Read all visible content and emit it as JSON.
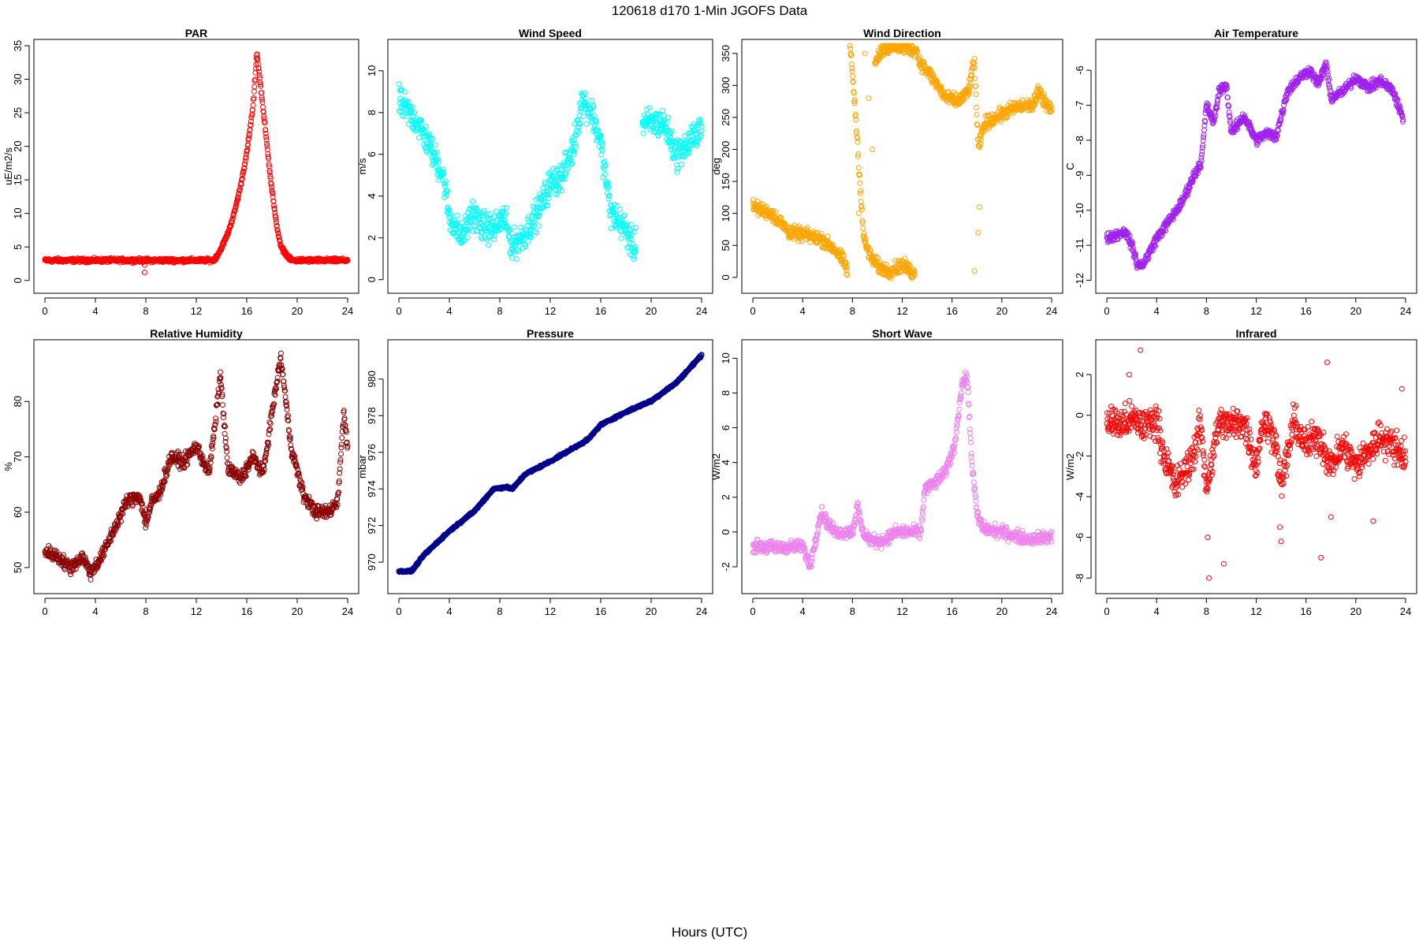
{
  "figure": {
    "title": "120618   d170   1-Min  JGOFS Data",
    "xlabel": "Hours (UTC)"
  },
  "chart_data": [
    {
      "type": "scatter",
      "title": "PAR",
      "ylabel": "uE/m2/s",
      "color": "#ff0000",
      "xlim": [
        0,
        24
      ],
      "ylim": [
        -0.5,
        35
      ],
      "xticks": [
        0,
        4,
        8,
        12,
        16,
        20,
        24
      ],
      "yticks": [
        0,
        5,
        10,
        15,
        20,
        25,
        30,
        35
      ],
      "series": [
        {
          "x": [
            0,
            13.4,
            13.9,
            14.5,
            15.0,
            15.5,
            16.0,
            16.5,
            16.8,
            17.1,
            17.5,
            17.9,
            18.3,
            18.7,
            19.1,
            19.5,
            24
          ],
          "y": [
            3,
            3,
            4.5,
            7,
            10,
            14,
            19,
            26,
            34,
            29,
            22,
            15,
            9,
            5,
            4,
            3,
            3
          ]
        }
      ],
      "outliers": [
        {
          "x": 7.9,
          "y": 2.3
        },
        {
          "x": 7.9,
          "y": 1.2
        }
      ],
      "noise": 0.25
    },
    {
      "type": "scatter",
      "title": "Wind Speed",
      "ylabel": "m/s",
      "color": "#00ffff",
      "xlim": [
        0,
        24
      ],
      "ylim": [
        -0.2,
        11.2
      ],
      "xticks": [
        0,
        4,
        8,
        12,
        16,
        20,
        24
      ],
      "yticks": [
        0,
        2,
        4,
        6,
        8,
        10
      ],
      "series": [
        {
          "x": [
            0,
            0.5,
            1.5,
            2.5,
            3.5,
            4.0,
            5.0,
            5.8,
            6.5,
            7.5,
            8.3,
            9.0,
            10.0,
            11.0,
            12.0,
            13.0,
            13.8,
            14.5,
            15.3,
            16.0,
            16.8,
            17.8,
            18.7,
            19.3,
            20.0,
            21.0,
            22.0,
            23.0,
            24.0
          ],
          "y": [
            8.5,
            8.2,
            7.5,
            6.3,
            5.0,
            3.0,
            2.0,
            3.2,
            2.6,
            2.4,
            3.0,
            1.6,
            2.2,
            3.2,
            4.6,
            5.0,
            6.3,
            8.6,
            8.0,
            6.5,
            3.2,
            2.6,
            1.4,
            7.5,
            7.5,
            7.5,
            6.0,
            6.5,
            7.5
          ]
        }
      ],
      "gaps": [
        [
          18.8,
          19.3
        ]
      ],
      "noise": 0.6
    },
    {
      "type": "scatter",
      "title": "Wind Direction",
      "ylabel": "deg",
      "color": "#ffa500",
      "xlim": [
        0,
        24
      ],
      "ylim": [
        -10,
        362
      ],
      "xticks": [
        0,
        4,
        8,
        12,
        16,
        20,
        24
      ],
      "yticks": [
        0,
        50,
        100,
        150,
        200,
        250,
        300,
        350
      ],
      "series": [
        {
          "x": [
            0,
            1.5,
            3.0,
            4.5,
            5.5,
            6.5,
            7.3,
            7.6
          ],
          "y": [
            110,
            100,
            70,
            65,
            60,
            45,
            25,
            10
          ]
        },
        {
          "x": [
            7.8,
            8.0,
            8.3,
            8.6,
            8.9,
            9.5,
            10.2,
            11.0,
            12.0,
            13.0
          ],
          "y": [
            360,
            320,
            240,
            150,
            60,
            30,
            15,
            10,
            20,
            5
          ]
        },
        {
          "x": [
            9.8,
            10.5,
            11.5,
            12.5,
            13.2
          ],
          "y": [
            340,
            358,
            360,
            358,
            355
          ]
        },
        {
          "x": [
            13.3,
            14.5,
            15.5,
            16.5,
            17.3,
            17.8,
            18.1,
            18.6,
            19.5,
            21.0,
            22.5,
            23.0,
            24.0
          ],
          "y": [
            340,
            310,
            280,
            275,
            290,
            340,
            200,
            240,
            250,
            265,
            270,
            290,
            260
          ]
        }
      ],
      "outliers": [
        {
          "x": 9.0,
          "y": 350
        },
        {
          "x": 9.3,
          "y": 280
        },
        {
          "x": 9.6,
          "y": 200
        },
        {
          "x": 8.5,
          "y": 100
        },
        {
          "x": 17.8,
          "y": 10
        },
        {
          "x": 18.2,
          "y": 110
        },
        {
          "x": 18.1,
          "y": 70
        }
      ],
      "noise": 9
    },
    {
      "type": "scatter",
      "title": "Air Temperature",
      "ylabel": "C",
      "color": "#a020f0",
      "xlim": [
        0,
        24
      ],
      "ylim": [
        -12.1,
        -5.3
      ],
      "xticks": [
        0,
        4,
        8,
        12,
        16,
        20,
        24
      ],
      "yticks": [
        -12,
        -11,
        -10,
        -9,
        -8,
        -7,
        -6
      ],
      "series": [
        {
          "x": [
            0,
            1.5,
            2.0,
            2.5,
            3.0,
            4.0,
            5.0,
            6.0,
            7.0,
            7.6,
            8.0,
            8.6,
            9.0,
            9.6,
            10.0,
            11.0,
            12.0,
            12.8,
            13.6,
            14.5,
            15.5,
            16.3,
            17.0,
            17.6,
            18.0,
            19.0,
            20.0,
            21.0,
            22.0,
            23.0,
            23.8
          ],
          "y": [
            -10.8,
            -10.6,
            -11.0,
            -11.6,
            -11.5,
            -10.8,
            -10.3,
            -9.8,
            -9.0,
            -8.6,
            -7.0,
            -7.5,
            -6.6,
            -6.4,
            -7.8,
            -7.3,
            -8.0,
            -7.8,
            -7.9,
            -6.6,
            -6.2,
            -6.0,
            -6.4,
            -5.8,
            -6.8,
            -6.6,
            -6.2,
            -6.5,
            -6.3,
            -6.6,
            -7.4
          ]
        }
      ],
      "noise": 0.12
    },
    {
      "type": "scatter",
      "title": "Relative Humidity",
      "ylabel": "%",
      "color": "#8b0000",
      "xlim": [
        0,
        24
      ],
      "ylim": [
        47,
        90
      ],
      "xticks": [
        0,
        4,
        8,
        12,
        16,
        20,
        24
      ],
      "yticks": [
        50,
        60,
        70,
        80
      ],
      "series": [
        {
          "x": [
            0,
            1.0,
            2.0,
            3.0,
            3.6,
            4.5,
            5.5,
            6.5,
            7.5,
            8.0,
            8.5,
            9.0,
            10.0,
            11.0,
            12.0,
            13.0,
            13.5,
            13.9,
            14.5,
            15.5,
            16.5,
            17.3,
            18.0,
            18.7,
            19.5,
            20.5,
            21.5,
            22.5,
            23.2,
            23.7,
            24.0
          ],
          "y": [
            53,
            52,
            50,
            52,
            49,
            52,
            57,
            62,
            63,
            58,
            62,
            63,
            70,
            69,
            72,
            67,
            76,
            85,
            68,
            66,
            70,
            67,
            78,
            88,
            72,
            63,
            60,
            60,
            62,
            78,
            72
          ]
        }
      ],
      "noise": 1.0
    },
    {
      "type": "scatter",
      "title": "Pressure",
      "ylabel": "mbar",
      "color": "#00008b",
      "xlim": [
        0,
        24
      ],
      "ylim": [
        968.8,
        981.8
      ],
      "xticks": [
        0,
        4,
        8,
        12,
        16,
        20,
        24
      ],
      "yticks": [
        970,
        972,
        974,
        976,
        978,
        980
      ],
      "series": [
        {
          "x": [
            0,
            1.0,
            2.0,
            4.0,
            6.0,
            7.5,
            8.5,
            9.0,
            10.0,
            12.0,
            14.0,
            15.0,
            16.0,
            18.0,
            20.0,
            22.0,
            24.0
          ],
          "y": [
            969.5,
            969.5,
            970.4,
            971.7,
            972.8,
            974.0,
            974.1,
            974.0,
            974.8,
            975.5,
            976.3,
            976.7,
            977.5,
            978.2,
            978.8,
            979.8,
            981.3
          ]
        }
      ],
      "noise": 0.05
    },
    {
      "type": "scatter",
      "title": "Short Wave",
      "ylabel": "W/m2",
      "color": "#ee82ee",
      "xlim": [
        0,
        24
      ],
      "ylim": [
        -3.0,
        10.7
      ],
      "xticks": [
        0,
        4,
        8,
        12,
        16,
        20,
        24
      ],
      "yticks": [
        -2,
        0,
        2,
        4,
        6,
        8,
        10
      ],
      "series": [
        {
          "x": [
            0,
            2.0,
            4.0,
            4.6,
            5.0,
            5.5,
            6.0,
            6.6,
            7.0,
            8.0,
            8.4,
            8.8,
            9.5,
            10.5,
            11.5,
            13.5,
            13.8,
            14.6,
            15.5,
            16.2,
            16.8,
            17.2,
            17.6,
            18.0,
            18.5,
            20.0,
            22.0,
            24.0
          ],
          "y": [
            -0.8,
            -0.9,
            -0.8,
            -2.0,
            -0.5,
            1.2,
            0.5,
            0.0,
            0.0,
            0.0,
            1.5,
            0.0,
            -0.5,
            -0.5,
            0.0,
            0.0,
            2.5,
            2.8,
            3.5,
            5.0,
            8.5,
            9.0,
            4.0,
            1.0,
            0.2,
            0.0,
            -0.4,
            -0.3
          ]
        }
      ],
      "noise": 0.3
    },
    {
      "type": "scatter",
      "title": "Infrared",
      "ylabel": "W/m2",
      "color": "#ff0000",
      "xlim": [
        0,
        24
      ],
      "ylim": [
        -8.3,
        3.4
      ],
      "xticks": [
        0,
        4,
        8,
        12,
        16,
        20,
        24
      ],
      "yticks": [
        -8,
        -6,
        -4,
        -2,
        0,
        2
      ],
      "series": [
        {
          "x": [
            0,
            1.0,
            2.0,
            3.0,
            4.0,
            4.6,
            5.5,
            6.5,
            7.2,
            7.5,
            8.0,
            8.5,
            9.0,
            10.0,
            11.0,
            12.0,
            12.5,
            13.5,
            14.0,
            14.5,
            15.0,
            16.0,
            17.0,
            18.0,
            19.0,
            20.0,
            21.0,
            22.0,
            23.0,
            24.0
          ],
          "y": [
            -0.2,
            -0.5,
            -0.2,
            -0.5,
            -0.2,
            -2.0,
            -3.5,
            -2.5,
            -1.5,
            -0.3,
            -3.5,
            -2.0,
            -0.3,
            -0.5,
            -0.3,
            -2.5,
            -0.3,
            -1.0,
            -3.5,
            -2.0,
            -0.3,
            -1.5,
            -1.0,
            -2.5,
            -1.5,
            -2.5,
            -1.8,
            -1.0,
            -1.5,
            -2.0
          ]
        }
      ],
      "outliers": [
        {
          "x": 2.7,
          "y": 3.2
        },
        {
          "x": 1.8,
          "y": 2.0
        },
        {
          "x": 8.2,
          "y": -8.0
        },
        {
          "x": 9.4,
          "y": -7.3
        },
        {
          "x": 8.1,
          "y": -6.0
        },
        {
          "x": 14.0,
          "y": -6.2
        },
        {
          "x": 17.2,
          "y": -7.0
        },
        {
          "x": 17.7,
          "y": 2.6
        },
        {
          "x": 18.0,
          "y": -5.0
        },
        {
          "x": 21.4,
          "y": -5.2
        },
        {
          "x": 23.7,
          "y": 1.3
        },
        {
          "x": 13.9,
          "y": -5.5
        }
      ],
      "noise": 0.7
    }
  ]
}
